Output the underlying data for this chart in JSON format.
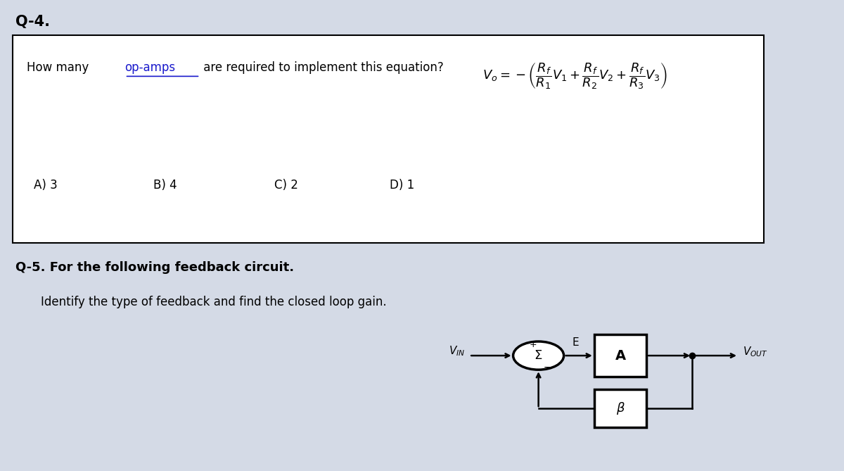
{
  "bg_color": "#d4dae6",
  "text_color": "#000000",
  "blue_color": "#1a1acc",
  "title_q4": "Q-4.",
  "title_q5": "Q-5. For the following feedback circuit.",
  "q5_sub": "Identify the type of feedback and find the closed loop gain.",
  "question_part1": "How many ",
  "question_part2": "op-amps",
  "question_part3": " are required to implement this equation?",
  "options": [
    "A) 3",
    "B) 4",
    "C) 2",
    "D) 1"
  ],
  "equation": "$V_o = -\\left(\\dfrac{R_f}{R_1}V_1 + \\dfrac{R_f}{R_2}V_2 + \\dfrac{R_f}{R_3}V_3\\right)$"
}
